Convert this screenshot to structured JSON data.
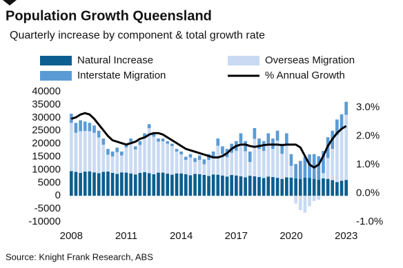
{
  "chart_data": {
    "type": "bar",
    "stacked": true,
    "title": "Population Growth Queensland",
    "subtitle": "Quarterly increase by component & total growth rate",
    "source": "Source: Knight Frank Research, ABS",
    "categories": [
      "2008",
      null,
      null,
      null,
      null,
      null,
      null,
      null,
      null,
      null,
      null,
      null,
      "2011",
      null,
      null,
      null,
      null,
      null,
      null,
      null,
      null,
      null,
      null,
      null,
      "2014",
      null,
      null,
      null,
      null,
      null,
      null,
      null,
      null,
      null,
      null,
      null,
      "2017",
      null,
      null,
      null,
      null,
      null,
      null,
      null,
      null,
      null,
      null,
      null,
      "2020",
      null,
      null,
      null,
      null,
      null,
      null,
      null,
      null,
      null,
      null,
      null,
      "2023"
    ],
    "series": [
      {
        "name": "Natural Increase",
        "color": "#0b5e8f",
        "values": [
          9500,
          9200,
          8800,
          9300,
          9400,
          9000,
          8700,
          9200,
          9300,
          8800,
          8400,
          9000,
          8900,
          8600,
          8200,
          8800,
          9100,
          8700,
          8300,
          8900,
          8900,
          8500,
          8100,
          8600,
          8600,
          8300,
          7900,
          8400,
          8300,
          8000,
          7600,
          8200,
          8100,
          7800,
          7400,
          8000,
          7800,
          7500,
          7100,
          7700,
          7500,
          7200,
          6800,
          7400,
          7200,
          6900,
          6500,
          7100,
          7000,
          6700,
          6400,
          7000,
          6900,
          6500,
          6200,
          6700,
          6500,
          6000,
          5300,
          5800,
          6100
        ]
      },
      {
        "name": "Overseas Migration",
        "color": "#c9daf2",
        "values": [
          18500,
          15000,
          16000,
          15600,
          15400,
          15200,
          13700,
          10400,
          6500,
          6300,
          8400,
          6500,
          9700,
          12100,
          9600,
          10700,
          13100,
          17300,
          14400,
          11900,
          12000,
          11500,
          11000,
          8400,
          7300,
          5500,
          6800,
          4600,
          5500,
          4100,
          6200,
          6300,
          11100,
          8200,
          7400,
          8500,
          9500,
          12700,
          10000,
          5300,
          14400,
          10800,
          10400,
          12700,
          10800,
          14300,
          9600,
          12800,
          4500,
          -3000,
          -5500,
          -6500,
          -4000,
          -2000,
          -1500,
          2000,
          8000,
          12000,
          18000,
          20000,
          25000
        ]
      },
      {
        "name": "Interstate Migration",
        "color": "#5b9bd5",
        "values": [
          3500,
          3800,
          4200,
          3600,
          3200,
          2800,
          2600,
          2400,
          2200,
          1900,
          1700,
          1500,
          1400,
          1300,
          1200,
          1500,
          1800,
          1500,
          1300,
          1200,
          1100,
          1000,
          900,
          1000,
          1100,
          1200,
          1300,
          1500,
          1700,
          1900,
          2200,
          2500,
          2800,
          3000,
          3200,
          3500,
          3700,
          3800,
          3900,
          4000,
          4100,
          4000,
          3800,
          3900,
          4000,
          3800,
          3900,
          4100,
          4500,
          5500,
          7000,
          8000,
          9000,
          9500,
          9000,
          8500,
          8000,
          7000,
          6000,
          5500,
          5000
        ]
      },
      {
        "name": "% Annual Growth",
        "color": "#000000",
        "type": "line",
        "axis": "y2",
        "values": [
          2.6,
          2.65,
          2.75,
          2.8,
          2.75,
          2.6,
          2.4,
          2.2,
          2.0,
          1.85,
          1.8,
          1.75,
          1.7,
          1.75,
          1.8,
          1.9,
          1.95,
          2.05,
          2.1,
          2.1,
          2.05,
          1.95,
          1.85,
          1.75,
          1.65,
          1.55,
          1.5,
          1.45,
          1.4,
          1.35,
          1.3,
          1.25,
          1.25,
          1.3,
          1.4,
          1.55,
          1.65,
          1.7,
          1.7,
          1.65,
          1.62,
          1.65,
          1.68,
          1.7,
          1.7,
          1.7,
          1.68,
          1.7,
          1.7,
          1.7,
          1.6,
          1.3,
          1.0,
          0.9,
          1.0,
          1.3,
          1.65,
          1.9,
          2.1,
          2.25,
          2.35
        ]
      }
    ],
    "ylim": [
      -10000,
      40000
    ],
    "yticks": [
      -10000,
      -5000,
      0,
      5000,
      10000,
      15000,
      20000,
      25000,
      30000,
      35000,
      40000
    ],
    "y2lim": [
      -1.0,
      3.55
    ],
    "y2ticks": [
      {
        "value": -1,
        "label": "-1.0%"
      },
      {
        "value": 0,
        "label": "0.0%"
      },
      {
        "value": 1,
        "label": "1.0%"
      },
      {
        "value": 2,
        "label": "2.0%"
      },
      {
        "value": 3,
        "label": "3.0%"
      }
    ],
    "grid": false
  }
}
